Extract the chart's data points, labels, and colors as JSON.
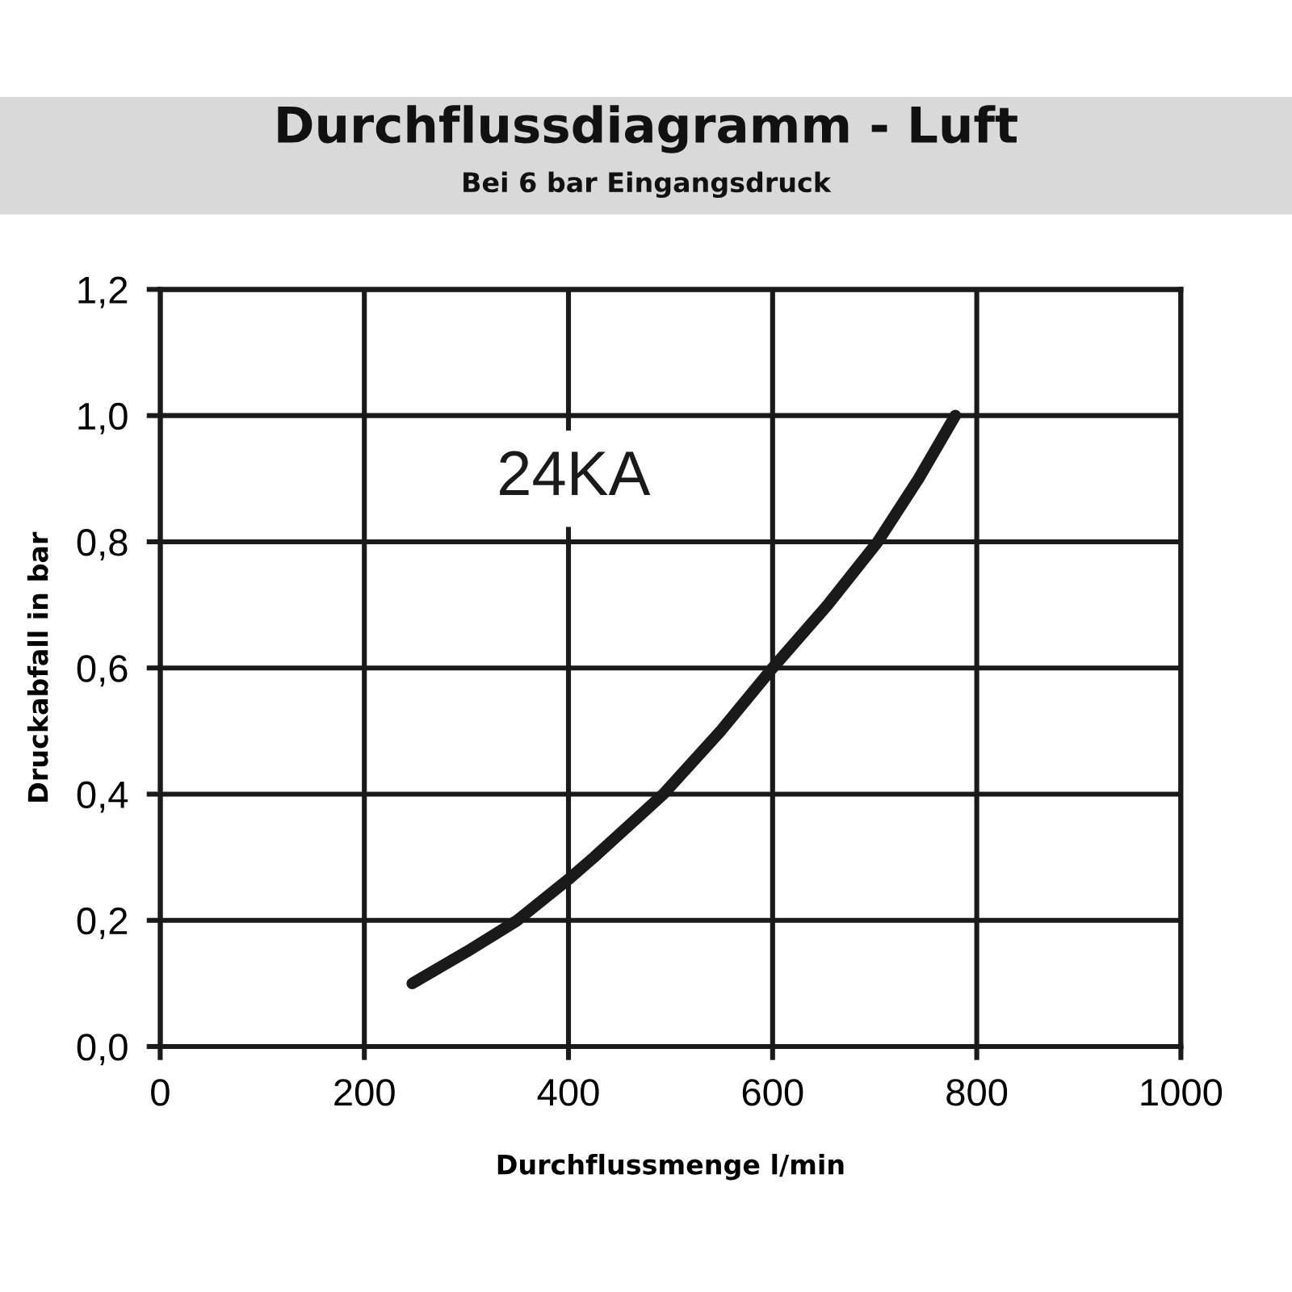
{
  "chart_data": {
    "type": "line",
    "title": "Durchflussdiagramm - Luft",
    "subtitle": "Bei 6 bar Eingangsdruck",
    "xlabel": "Durchflussmenge l/min",
    "ylabel": "Druckabfall in bar",
    "series": [
      {
        "name": "24KA",
        "color": "#1a1a1a",
        "x": [
          247,
          300,
          350,
          400,
          425,
          493,
          549,
          600,
          654,
          703,
          743,
          779
        ],
        "values": [
          0.1,
          0.15,
          0.2,
          0.265,
          0.3,
          0.4,
          0.5,
          0.6,
          0.7,
          0.8,
          0.9,
          1.0
        ]
      }
    ],
    "xlim": [
      0,
      1000
    ],
    "xticks": [
      0,
      200,
      400,
      600,
      800,
      1000
    ],
    "ylim": [
      0,
      1.2
    ],
    "yticks": [
      {
        "value": 0,
        "label": "0,0"
      },
      {
        "value": 0.2,
        "label": "0,2"
      },
      {
        "value": 0.4,
        "label": "0,4"
      },
      {
        "value": 0.6,
        "label": "0,6"
      },
      {
        "value": 0.8,
        "label": "0,8"
      },
      {
        "value": 1.0,
        "label": "1,0"
      },
      {
        "value": 1.2,
        "label": "1,2"
      }
    ],
    "grid": true,
    "legend": false,
    "marker": "none",
    "line_style": "solid"
  }
}
